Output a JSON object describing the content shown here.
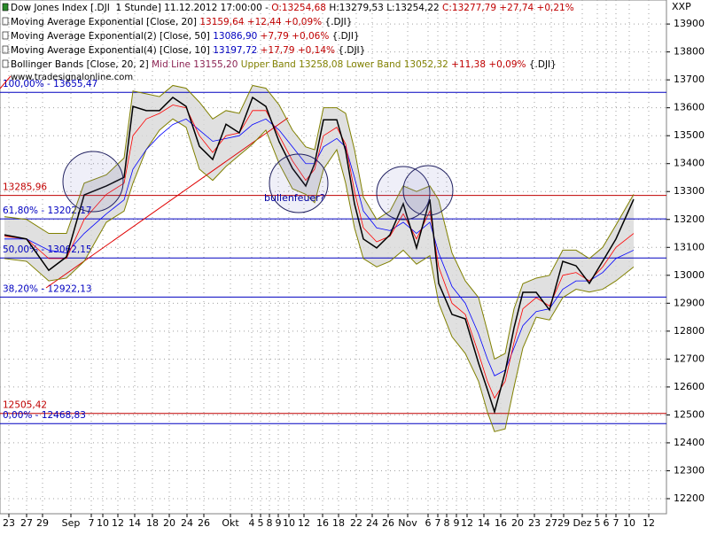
{
  "chart_data": {
    "type": "line",
    "right_label": "XXP",
    "watermark": "www.tradesignalonline.com",
    "annotation": "bullenfeuer?",
    "legend": [
      [
        {
          "text": "Dow Jones Index [.DJI  1 Stunde] 11.12.2012 17:00:00 - ",
          "color": "#000000"
        },
        {
          "text": "O:13254,68",
          "color": "#c00000"
        },
        {
          "text": " H:13279,53 L:13254,22 ",
          "color": "#000000"
        },
        {
          "text": "C:13277,79 +27,74 +0,21%",
          "color": "#c00000"
        }
      ],
      [
        {
          "text": "Moving Average Exponential [Close, 20] ",
          "color": "#000000"
        },
        {
          "text": "13159,64 +12,44 +0,09%",
          "color": "#c00000"
        },
        {
          "text": " {.DJI}",
          "color": "#000000"
        }
      ],
      [
        {
          "text": "Moving Average Exponential(2) [Close, 50] ",
          "color": "#000000"
        },
        {
          "text": "13086,90",
          "color": "#0000c0"
        },
        {
          "text": " +7,79 +0,06%",
          "color": "#c00000"
        },
        {
          "text": " {.DJI}",
          "color": "#000000"
        }
      ],
      [
        {
          "text": "Moving Average Exponential(4) [Close, 10] ",
          "color": "#000000"
        },
        {
          "text": "13197,72",
          "color": "#0000c0"
        },
        {
          "text": " +17,79 +0,14%",
          "color": "#c00000"
        },
        {
          "text": " {.DJI}",
          "color": "#000000"
        }
      ],
      [
        {
          "text": "Bollinger Bands [Close, 20, 2] ",
          "color": "#000000"
        },
        {
          "text": "Mid Line 13155,20",
          "color": "#8b2252"
        },
        {
          "text": " Upper Band 13258,08",
          "color": "#808000"
        },
        {
          "text": " Lower Band 13052,32",
          "color": "#808000"
        },
        {
          "text": " +11,38 +0,09%",
          "color": "#c00000"
        },
        {
          "text": " {.DJI}",
          "color": "#000000"
        }
      ]
    ],
    "xlim": [
      0,
      752
    ],
    "ylim": [
      12146,
      13986
    ],
    "yticks": [
      12200,
      12300,
      12400,
      12500,
      12600,
      12700,
      12800,
      12900,
      13000,
      13100,
      13200,
      13300,
      13400,
      13500,
      13600,
      13700,
      13800,
      13900
    ],
    "xticks": [
      {
        "value": 10,
        "label": "23"
      },
      {
        "value": 30,
        "label": "27"
      },
      {
        "value": 48,
        "label": "29"
      },
      {
        "value": 80,
        "label": "Sep"
      },
      {
        "value": 103,
        "label": "7"
      },
      {
        "value": 116,
        "label": "10"
      },
      {
        "value": 133,
        "label": "12"
      },
      {
        "value": 152,
        "label": "14"
      },
      {
        "value": 172,
        "label": "18"
      },
      {
        "value": 191,
        "label": "20"
      },
      {
        "value": 211,
        "label": "24"
      },
      {
        "value": 230,
        "label": "26"
      },
      {
        "value": 260,
        "label": "Okt"
      },
      {
        "value": 284,
        "label": "4"
      },
      {
        "value": 294,
        "label": "5"
      },
      {
        "value": 304,
        "label": "8"
      },
      {
        "value": 314,
        "label": "9"
      },
      {
        "value": 326,
        "label": "10"
      },
      {
        "value": 343,
        "label": "12"
      },
      {
        "value": 364,
        "label": "16"
      },
      {
        "value": 382,
        "label": "18"
      },
      {
        "value": 402,
        "label": "22"
      },
      {
        "value": 420,
        "label": "24"
      },
      {
        "value": 438,
        "label": "26"
      },
      {
        "value": 460,
        "label": "Nov"
      },
      {
        "value": 483,
        "label": "6"
      },
      {
        "value": 494,
        "label": "7"
      },
      {
        "value": 504,
        "label": "8"
      },
      {
        "value": 515,
        "label": "9"
      },
      {
        "value": 527,
        "label": "12"
      },
      {
        "value": 546,
        "label": "14"
      },
      {
        "value": 565,
        "label": "16"
      },
      {
        "value": 584,
        "label": "20"
      },
      {
        "value": 603,
        "label": "23"
      },
      {
        "value": 622,
        "label": "27"
      },
      {
        "value": 636,
        "label": "29"
      },
      {
        "value": 657,
        "label": "Dez"
      },
      {
        "value": 674,
        "label": "5"
      },
      {
        "value": 684,
        "label": "6"
      },
      {
        "value": 695,
        "label": "7"
      },
      {
        "value": 710,
        "label": "10"
      },
      {
        "value": 732,
        "label": "12"
      }
    ],
    "grid": true,
    "levels": [
      {
        "value": 13655.47,
        "label": "100,00% - 13655,47",
        "color": "#0000c0"
      },
      {
        "value": 13285.96,
        "label": "13285,96",
        "color": "#c00000"
      },
      {
        "value": 13202.17,
        "label": "61,80% - 13202,17",
        "color": "#0000c0"
      },
      {
        "value": 13062.15,
        "label": "50,00% - 13062,15",
        "color": "#0000c0"
      },
      {
        "value": 12922.13,
        "label": "38,20% - 12922,13",
        "color": "#0000c0"
      },
      {
        "value": 12505.42,
        "label": "12505,42",
        "color": "#c00000"
      },
      {
        "value": 12468.83,
        "label": "0,00% - 12468,83",
        "color": "#0000c0"
      }
    ],
    "x": [
      5,
      30,
      55,
      75,
      95,
      120,
      140,
      150,
      165,
      180,
      195,
      210,
      225,
      240,
      255,
      270,
      285,
      300,
      315,
      330,
      345,
      355,
      365,
      380,
      390,
      400,
      410,
      425,
      440,
      455,
      470,
      485,
      495,
      510,
      525,
      540,
      550,
      558,
      570,
      580,
      590,
      605,
      620,
      635,
      650,
      665,
      680,
      695,
      715
    ],
    "band_upper": {
      "color": "#808000",
      "values": [
        13210,
        13200,
        13150,
        13150,
        13330,
        13360,
        13420,
        13660,
        13650,
        13640,
        13680,
        13670,
        13620,
        13560,
        13590,
        13580,
        13680,
        13670,
        13610,
        13520,
        13460,
        13450,
        13600,
        13600,
        13580,
        13450,
        13280,
        13200,
        13230,
        13320,
        13300,
        13320,
        13270,
        13080,
        12980,
        12920,
        12800,
        12700,
        12720,
        12880,
        12970,
        12990,
        13000,
        13090,
        13090,
        13060,
        13100,
        13180,
        13290
      ]
    },
    "band_lower": {
      "color": "#808000",
      "values": [
        13060,
        13050,
        12980,
        12990,
        13050,
        13190,
        13230,
        13330,
        13450,
        13520,
        13560,
        13530,
        13380,
        13340,
        13390,
        13430,
        13470,
        13520,
        13400,
        13310,
        13290,
        13260,
        13380,
        13450,
        13330,
        13170,
        13060,
        13030,
        13050,
        13090,
        13040,
        13070,
        12900,
        12780,
        12720,
        12620,
        12510,
        12440,
        12450,
        12600,
        12740,
        12850,
        12840,
        12920,
        12950,
        12940,
        12950,
        12980,
        13030
      ]
    },
    "ema50": {
      "color": "#0000ff",
      "values": [
        13130,
        13130,
        13090,
        13080,
        13150,
        13220,
        13270,
        13380,
        13450,
        13500,
        13540,
        13560,
        13520,
        13480,
        13490,
        13500,
        13540,
        13560,
        13520,
        13460,
        13400,
        13400,
        13460,
        13490,
        13460,
        13350,
        13230,
        13170,
        13160,
        13190,
        13150,
        13190,
        13080,
        12960,
        12900,
        12790,
        12700,
        12640,
        12660,
        12740,
        12820,
        12870,
        12880,
        12950,
        12980,
        12980,
        13010,
        13060,
        13090
      ]
    },
    "ema20": {
      "color": "#ff0000",
      "values": [
        13140,
        13130,
        13060,
        13060,
        13200,
        13290,
        13330,
        13500,
        13560,
        13580,
        13610,
        13600,
        13500,
        13440,
        13500,
        13510,
        13590,
        13590,
        13500,
        13410,
        13340,
        13380,
        13500,
        13530,
        13470,
        13300,
        13170,
        13120,
        13140,
        13220,
        13130,
        13230,
        13030,
        12900,
        12860,
        12720,
        12620,
        12560,
        12620,
        12760,
        12880,
        12920,
        12890,
        13000,
        13010,
        12980,
        13030,
        13100,
        13150
      ]
    },
    "close": {
      "color": "#000000",
      "values": [
        13145,
        13130,
        13018,
        13066,
        13288,
        13320,
        13351,
        13605,
        13590,
        13590,
        13637,
        13605,
        13462,
        13415,
        13541,
        13510,
        13637,
        13605,
        13478,
        13383,
        13320,
        13400,
        13557,
        13557,
        13446,
        13256,
        13130,
        13098,
        13145,
        13256,
        13098,
        13272,
        12971,
        12860,
        12844,
        12685,
        12590,
        12511,
        12654,
        12812,
        12939,
        12939,
        12876,
        13050,
        13034,
        12971,
        13050,
        13130,
        13272
      ]
    }
  }
}
